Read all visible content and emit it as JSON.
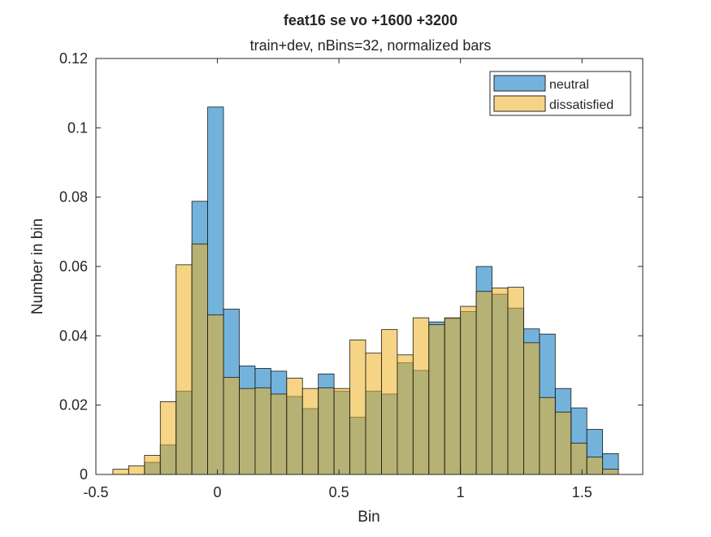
{
  "chart_data": {
    "type": "bar",
    "title": "feat16 se vo  +1600  +3200",
    "subtitle": "train+dev, nBins=32, normalized bars",
    "xlabel": "Bin",
    "ylabel": "Number in bin",
    "xlim": [
      -0.5,
      1.75
    ],
    "ylim": [
      0,
      0.12
    ],
    "xticks": [
      -0.5,
      0,
      0.5,
      1,
      1.5
    ],
    "xtick_labels": [
      "-0.5",
      "0",
      "0.5",
      "1",
      "1.5"
    ],
    "yticks": [
      0,
      0.02,
      0.04,
      0.06,
      0.08,
      0.1,
      0.12
    ],
    "ytick_labels": [
      "0",
      "0.02",
      "0.04",
      "0.06",
      "0.08",
      "0.1",
      "0.12"
    ],
    "grid": false,
    "legend_position": "top-right",
    "series": [
      {
        "name": "neutral",
        "color": "#0072BD",
        "bin_start": -0.3,
        "bin_width": 0.065,
        "values": [
          0.0035,
          0.0085,
          0.024,
          0.0788,
          0.106,
          0.0477,
          0.0313,
          0.0306,
          0.0298,
          0.0225,
          0.019,
          0.029,
          0.024,
          0.0165,
          0.024,
          0.0232,
          0.0322,
          0.03,
          0.044,
          0.045,
          0.047,
          0.06,
          0.052,
          0.048,
          0.042,
          0.0405,
          0.0248,
          0.0192,
          0.013,
          0.006
        ]
      },
      {
        "name": "dissatisfied",
        "color": "#EDB120",
        "bin_start": -0.43,
        "bin_width": 0.065,
        "values": [
          0.0015,
          0.0025,
          0.0055,
          0.021,
          0.0605,
          0.0665,
          0.046,
          0.028,
          0.0248,
          0.025,
          0.0232,
          0.0278,
          0.0248,
          0.025,
          0.0248,
          0.0388,
          0.035,
          0.0418,
          0.0345,
          0.0452,
          0.0432,
          0.0452,
          0.0485,
          0.0528,
          0.0538,
          0.054,
          0.038,
          0.0222,
          0.018,
          0.009,
          0.005,
          0.0015
        ]
      }
    ]
  }
}
